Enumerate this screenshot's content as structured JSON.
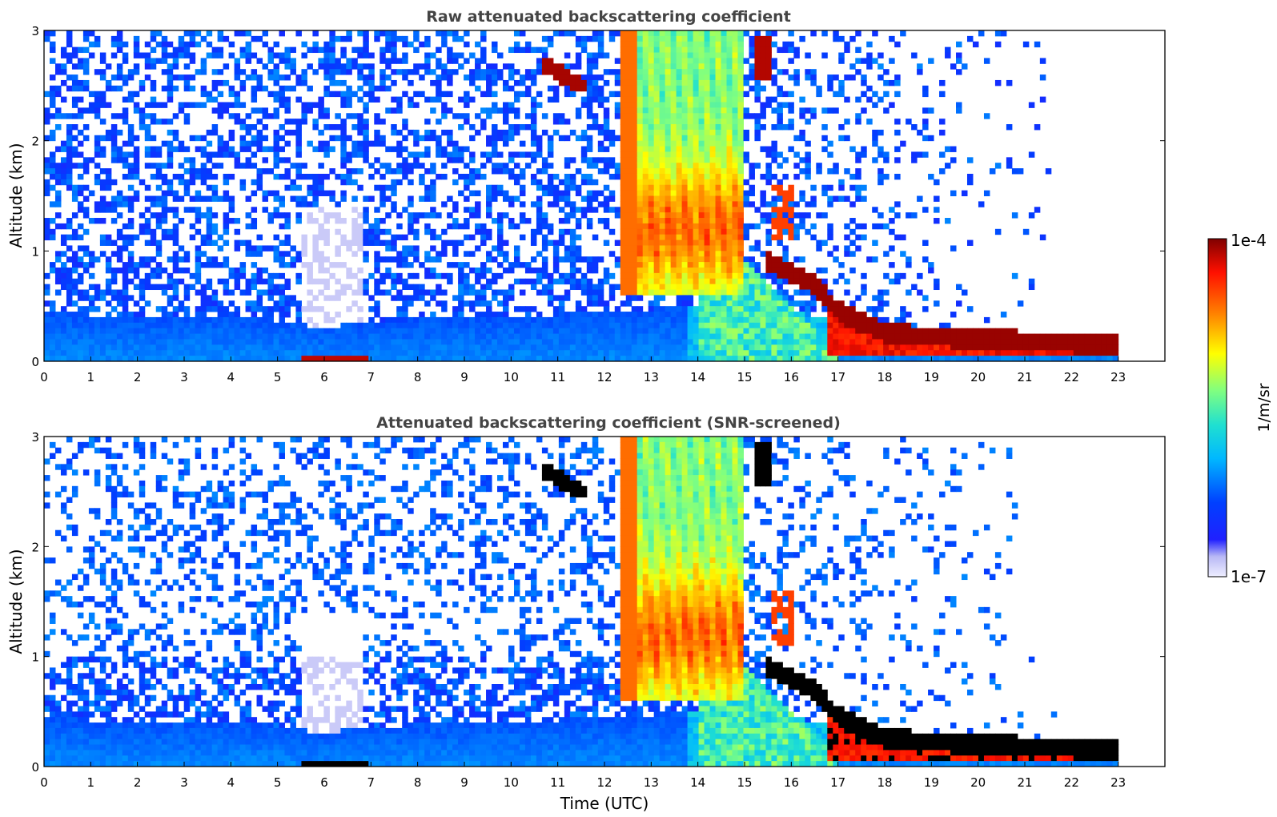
{
  "chart_data": [
    {
      "type": "heatmap",
      "title": "Raw attenuated backscattering coefficient",
      "xlabel": "",
      "ylabel": "Altitude (km)",
      "xlim": [
        0,
        24
      ],
      "ylim": [
        0,
        3
      ],
      "x_ticks": [
        "0",
        "1",
        "2",
        "3",
        "4",
        "5",
        "6",
        "7",
        "8",
        "9",
        "10",
        "11",
        "12",
        "13",
        "14",
        "15",
        "16",
        "17",
        "18",
        "19",
        "20",
        "21",
        "22",
        "23"
      ],
      "y_ticks": [
        "0",
        "1",
        "2",
        "3"
      ],
      "screened": false,
      "data_end_time": 23,
      "boundary_layer_top_km": [
        [
          0,
          0.45
        ],
        [
          2,
          0.4
        ],
        [
          4,
          0.42
        ],
        [
          5.5,
          0.35
        ],
        [
          6,
          0.28
        ],
        [
          6.5,
          0.35
        ],
        [
          8,
          0.38
        ],
        [
          10,
          0.4
        ],
        [
          12,
          0.45
        ],
        [
          14,
          0.5
        ],
        [
          15,
          0.5
        ],
        [
          16,
          0.45
        ],
        [
          17,
          0.35
        ],
        [
          18,
          0.28
        ],
        [
          20,
          0.25
        ],
        [
          23,
          0.2
        ]
      ],
      "features": [
        {
          "name": "elevated-aerosol-layer-11h",
          "t": [
            10.7,
            11.6
          ],
          "alt_km": [
            2.45,
            2.7
          ],
          "level": 0.95
        },
        {
          "name": "smoke-plume-12.5-15h",
          "t": [
            12.3,
            15.0
          ],
          "alt_km": [
            0.6,
            3.0
          ],
          "level": 0.8
        },
        {
          "name": "aerosol-15.2-15.6h",
          "t": [
            15.2,
            15.6
          ],
          "alt_km": [
            2.6,
            2.95
          ],
          "level": 0.95
        },
        {
          "name": "layer-15.5-16.5h",
          "t": [
            15.5,
            16.6
          ],
          "alt_km": [
            0.8,
            0.9
          ],
          "level": 0.95
        },
        {
          "name": "descending-layer-17-23h",
          "t": [
            16.5,
            23.0
          ],
          "alt_km": [
            0.1,
            0.35
          ],
          "level": 1.0
        }
      ]
    },
    {
      "type": "heatmap",
      "title": "Attenuated backscattering coefficient (SNR-screened)",
      "xlabel": "Time (UTC)",
      "ylabel": "Altitude (km)",
      "xlim": [
        0,
        24
      ],
      "ylim": [
        0,
        3
      ],
      "x_ticks": [
        "0",
        "1",
        "2",
        "3",
        "4",
        "5",
        "6",
        "7",
        "8",
        "9",
        "10",
        "11",
        "12",
        "13",
        "14",
        "15",
        "16",
        "17",
        "18",
        "19",
        "20",
        "21",
        "22",
        "23"
      ],
      "y_ticks": [
        "0",
        "1",
        "2",
        "3"
      ],
      "screened": true,
      "data_end_time": 23,
      "saturated_color": "#000000"
    }
  ],
  "colorbar": {
    "label": "1/m/sr",
    "max_label": "1e-4",
    "min_label": "1e-7",
    "colormap": "jet-with-white-low-end"
  }
}
